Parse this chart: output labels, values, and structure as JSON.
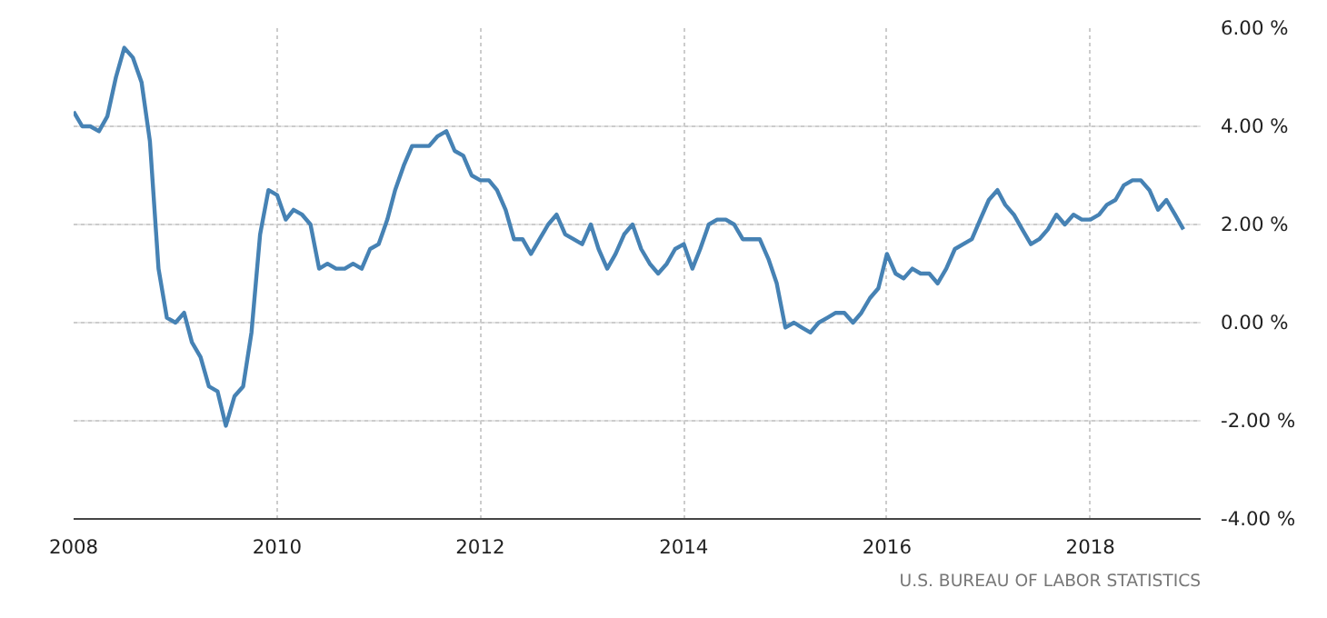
{
  "chart_data": {
    "type": "line",
    "annotations": [
      "U.S. BUREAU OF LABOR STATISTICS"
    ],
    "x": [
      "2008-01",
      "2008-02",
      "2008-03",
      "2008-04",
      "2008-05",
      "2008-06",
      "2008-07",
      "2008-08",
      "2008-09",
      "2008-10",
      "2008-11",
      "2008-12",
      "2009-01",
      "2009-02",
      "2009-03",
      "2009-04",
      "2009-05",
      "2009-06",
      "2009-07",
      "2009-08",
      "2009-09",
      "2009-10",
      "2009-11",
      "2009-12",
      "2010-01",
      "2010-02",
      "2010-03",
      "2010-04",
      "2010-05",
      "2010-06",
      "2010-07",
      "2010-08",
      "2010-09",
      "2010-10",
      "2010-11",
      "2010-12",
      "2011-01",
      "2011-02",
      "2011-03",
      "2011-04",
      "2011-05",
      "2011-06",
      "2011-07",
      "2011-08",
      "2011-09",
      "2011-10",
      "2011-11",
      "2011-12",
      "2012-01",
      "2012-02",
      "2012-03",
      "2012-04",
      "2012-05",
      "2012-06",
      "2012-07",
      "2012-08",
      "2012-09",
      "2012-10",
      "2012-11",
      "2012-12",
      "2013-01",
      "2013-02",
      "2013-03",
      "2013-04",
      "2013-05",
      "2013-06",
      "2013-07",
      "2013-08",
      "2013-09",
      "2013-10",
      "2013-11",
      "2013-12",
      "2014-01",
      "2014-02",
      "2014-03",
      "2014-04",
      "2014-05",
      "2014-06",
      "2014-07",
      "2014-08",
      "2014-09",
      "2014-10",
      "2014-11",
      "2014-12",
      "2015-01",
      "2015-02",
      "2015-03",
      "2015-04",
      "2015-05",
      "2015-06",
      "2015-07",
      "2015-08",
      "2015-09",
      "2015-10",
      "2015-11",
      "2015-12",
      "2016-01",
      "2016-02",
      "2016-03",
      "2016-04",
      "2016-05",
      "2016-06",
      "2016-07",
      "2016-08",
      "2016-09",
      "2016-10",
      "2016-11",
      "2016-12",
      "2017-01",
      "2017-02",
      "2017-03",
      "2017-04",
      "2017-05",
      "2017-06",
      "2017-07",
      "2017-08",
      "2017-09",
      "2017-10",
      "2017-11",
      "2017-12",
      "2018-01",
      "2018-02",
      "2018-03",
      "2018-04",
      "2018-05",
      "2018-06",
      "2018-07",
      "2018-08",
      "2018-09",
      "2018-10",
      "2018-11",
      "2018-12"
    ],
    "series": [
      {
        "color": "#4682b4",
        "values": [
          4.3,
          4.0,
          4.0,
          3.9,
          4.2,
          5.0,
          5.6,
          5.4,
          4.9,
          3.7,
          1.1,
          0.1,
          0.0,
          0.2,
          -0.4,
          -0.7,
          -1.3,
          -1.4,
          -2.1,
          -1.5,
          -1.3,
          -0.2,
          1.8,
          2.7,
          2.6,
          2.1,
          2.3,
          2.2,
          2.0,
          1.1,
          1.2,
          1.1,
          1.1,
          1.2,
          1.1,
          1.5,
          1.6,
          2.1,
          2.7,
          3.2,
          3.6,
          3.6,
          3.6,
          3.8,
          3.9,
          3.5,
          3.4,
          3.0,
          2.9,
          2.9,
          2.7,
          2.3,
          1.7,
          1.7,
          1.4,
          1.7,
          2.0,
          2.2,
          1.8,
          1.7,
          1.6,
          2.0,
          1.5,
          1.1,
          1.4,
          1.8,
          2.0,
          1.5,
          1.2,
          1.0,
          1.2,
          1.5,
          1.6,
          1.1,
          1.5,
          2.0,
          2.1,
          2.1,
          2.0,
          1.7,
          1.7,
          1.7,
          1.3,
          0.8,
          -0.1,
          0.0,
          -0.1,
          -0.2,
          0.0,
          0.1,
          0.2,
          0.2,
          0.0,
          0.2,
          0.5,
          0.7,
          1.4,
          1.0,
          0.9,
          1.1,
          1.0,
          1.0,
          0.8,
          1.1,
          1.5,
          1.6,
          1.7,
          2.1,
          2.5,
          2.7,
          2.4,
          2.2,
          1.9,
          1.6,
          1.7,
          1.9,
          2.2,
          2.0,
          2.2,
          2.1,
          2.1,
          2.2,
          2.4,
          2.5,
          2.8,
          2.9,
          2.9,
          2.7,
          2.3,
          2.5,
          2.2,
          1.9
        ]
      }
    ],
    "xlim": [
      "2008-01",
      "2019-02"
    ],
    "xticks": [
      {
        "value": "2008-01",
        "label": "2008"
      },
      {
        "value": "2010-01",
        "label": "2010"
      },
      {
        "value": "2012-01",
        "label": "2012"
      },
      {
        "value": "2014-01",
        "label": "2014"
      },
      {
        "value": "2016-01",
        "label": "2016"
      },
      {
        "value": "2018-01",
        "label": "2018"
      }
    ],
    "ylim": [
      -4,
      6
    ],
    "yticks": [
      {
        "value": -4,
        "label": "-4.00 %"
      },
      {
        "value": -2,
        "label": "-2.00 %"
      },
      {
        "value": 0,
        "label": "0.00 %"
      },
      {
        "value": 2,
        "label": "2.00 %"
      },
      {
        "value": 4,
        "label": "4.00 %"
      },
      {
        "value": 6,
        "label": "6.00 %"
      }
    ],
    "grid": true,
    "line_style": "solid"
  }
}
